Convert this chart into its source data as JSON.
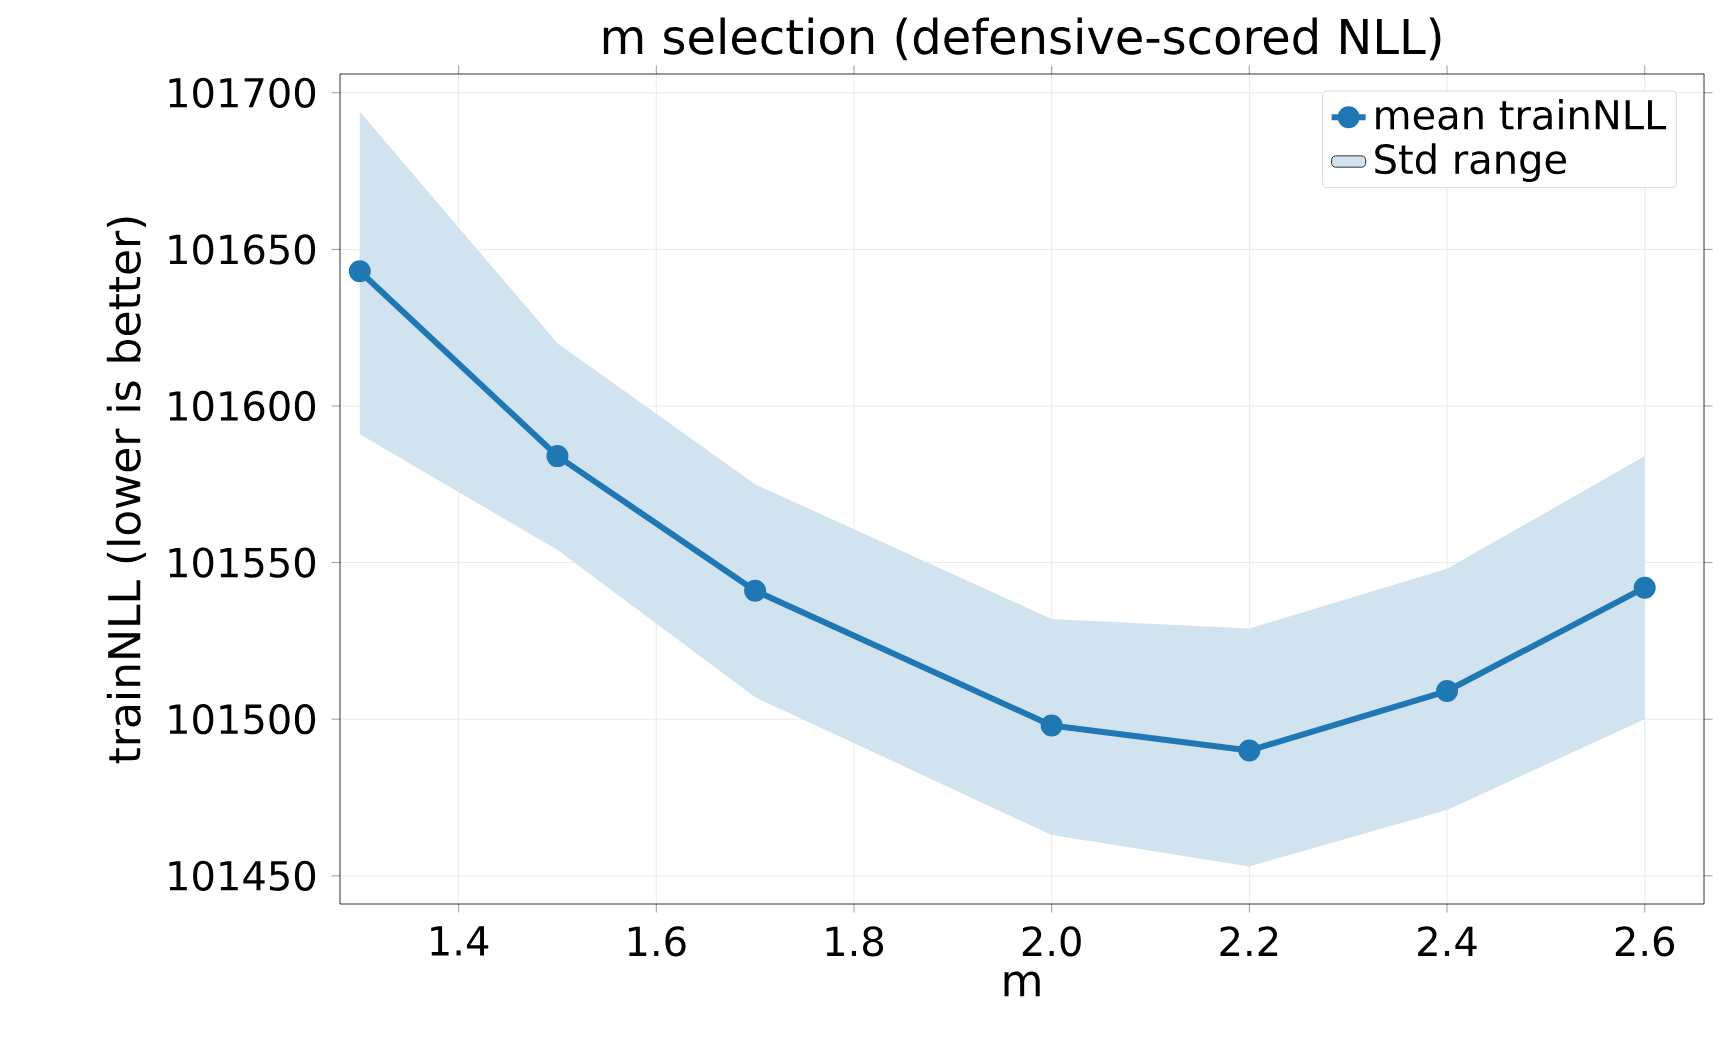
{
  "chart_data": {
    "type": "line",
    "title": "m selection (defensive-scored NLL)",
    "xlabel": "m",
    "ylabel": "trainNLL (lower is better)",
    "x": [
      1.3,
      1.5,
      1.7,
      2.0,
      2.2,
      2.4,
      2.6
    ],
    "series": [
      {
        "name": "mean trainNLL",
        "color": "#1f77b4",
        "marker": "circle",
        "values": [
          101643,
          101584,
          101541,
          101498,
          101490,
          101509,
          101542
        ]
      },
      {
        "name": "Std range",
        "type": "area",
        "color": "#d2e3f0",
        "values": [
          null,
          null,
          null,
          null,
          null,
          null,
          null
        ],
        "lower": [
          101591,
          101554,
          101507,
          101463,
          101453,
          101471,
          101500
        ],
        "upper": [
          101694,
          101620,
          101575,
          101532,
          101529,
          101548,
          101584
        ]
      }
    ],
    "xlim": [
      1.28,
      2.66
    ],
    "ylim": [
      101441,
      101706
    ],
    "xticks": [
      1.4,
      1.6,
      1.8,
      {
        "value": 2,
        "label": "2.0"
      },
      2.2,
      2.4,
      2.6
    ],
    "yticks": [
      101450,
      101500,
      101550,
      101600,
      101650,
      101700
    ],
    "grid": true,
    "legend": "top right",
    "line_style": "solid"
  }
}
